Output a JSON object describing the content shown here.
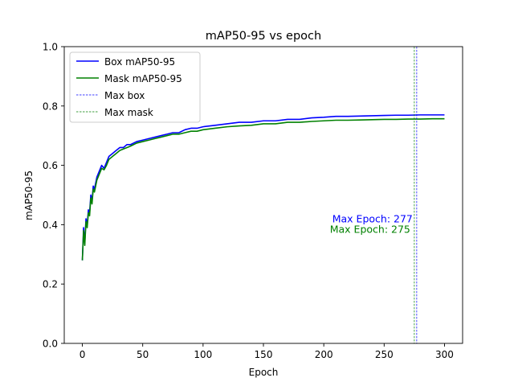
{
  "chart_data": {
    "type": "line",
    "title": "mAP50-95 vs epoch",
    "xlabel": "Epoch",
    "ylabel": "mAP50-95",
    "xlim": [
      -15,
      315
    ],
    "ylim": [
      0.0,
      1.0
    ],
    "xticks": [
      0,
      50,
      100,
      150,
      200,
      250,
      300
    ],
    "xtick_labels": [
      "0",
      "50",
      "100",
      "150",
      "200",
      "250",
      "300"
    ],
    "yticks": [
      0.0,
      0.2,
      0.4,
      0.6,
      0.8,
      1.0
    ],
    "ytick_labels": [
      "0.0",
      "0.2",
      "0.4",
      "0.6",
      "0.8",
      "1.0"
    ],
    "grid": false,
    "legend_position": "top-left",
    "series": [
      {
        "name": "Box mAP50-95",
        "color": "#0000ff",
        "x": [
          0,
          1,
          2,
          3,
          4,
          5,
          6,
          7,
          8,
          9,
          10,
          12,
          14,
          16,
          18,
          20,
          22,
          25,
          28,
          31,
          34,
          37,
          40,
          45,
          50,
          55,
          60,
          65,
          70,
          75,
          80,
          85,
          90,
          95,
          100,
          110,
          120,
          130,
          140,
          150,
          160,
          170,
          180,
          190,
          200,
          210,
          220,
          230,
          240,
          250,
          260,
          270,
          280,
          290,
          300
        ],
        "y": [
          0.28,
          0.39,
          0.34,
          0.42,
          0.4,
          0.45,
          0.44,
          0.5,
          0.48,
          0.53,
          0.52,
          0.56,
          0.58,
          0.6,
          0.59,
          0.61,
          0.63,
          0.64,
          0.65,
          0.66,
          0.66,
          0.67,
          0.67,
          0.68,
          0.685,
          0.69,
          0.695,
          0.7,
          0.705,
          0.71,
          0.71,
          0.72,
          0.725,
          0.725,
          0.73,
          0.735,
          0.74,
          0.745,
          0.745,
          0.75,
          0.75,
          0.755,
          0.755,
          0.76,
          0.762,
          0.765,
          0.765,
          0.766,
          0.767,
          0.768,
          0.769,
          0.769,
          0.77,
          0.77,
          0.77
        ]
      },
      {
        "name": "Mask mAP50-95",
        "color": "#008000",
        "x": [
          0,
          1,
          2,
          3,
          4,
          5,
          6,
          7,
          8,
          9,
          10,
          12,
          14,
          16,
          18,
          20,
          22,
          25,
          28,
          31,
          34,
          37,
          40,
          45,
          50,
          55,
          60,
          65,
          70,
          75,
          80,
          85,
          90,
          95,
          100,
          110,
          120,
          130,
          140,
          150,
          160,
          170,
          180,
          190,
          200,
          210,
          220,
          230,
          240,
          250,
          260,
          270,
          280,
          290,
          300
        ],
        "y": [
          0.28,
          0.38,
          0.33,
          0.41,
          0.39,
          0.44,
          0.43,
          0.49,
          0.47,
          0.52,
          0.51,
          0.55,
          0.57,
          0.59,
          0.585,
          0.6,
          0.62,
          0.63,
          0.64,
          0.65,
          0.655,
          0.66,
          0.665,
          0.675,
          0.68,
          0.685,
          0.69,
          0.695,
          0.7,
          0.705,
          0.705,
          0.71,
          0.715,
          0.715,
          0.72,
          0.725,
          0.73,
          0.733,
          0.735,
          0.74,
          0.74,
          0.745,
          0.745,
          0.748,
          0.75,
          0.752,
          0.752,
          0.753,
          0.754,
          0.755,
          0.755,
          0.756,
          0.756,
          0.757,
          0.757
        ]
      }
    ],
    "vlines": [
      {
        "name": "Max box",
        "x": 277,
        "color": "#0000ff",
        "style": "dashed"
      },
      {
        "name": "Max mask",
        "x": 275,
        "color": "#008000",
        "style": "dashed"
      }
    ],
    "annotations": [
      {
        "text": "Max Epoch: 277",
        "x": 277,
        "y": 0.42,
        "color": "#0000ff"
      },
      {
        "text": "Max Epoch: 275",
        "x": 275,
        "y": 0.385,
        "color": "#008000"
      }
    ]
  }
}
